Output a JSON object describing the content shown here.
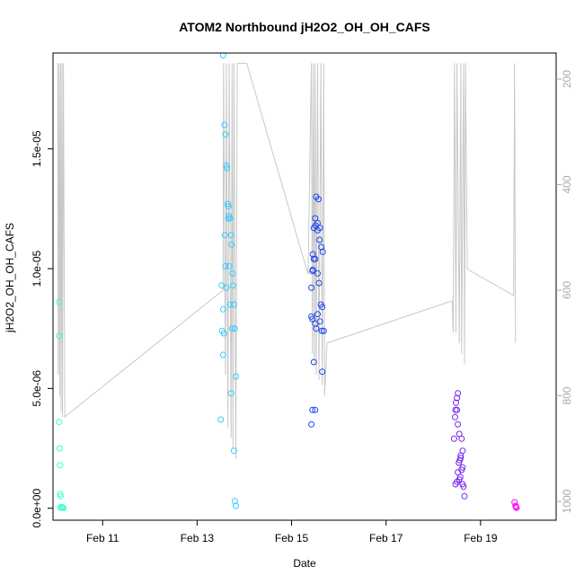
{
  "chart_data": {
    "type": "scatter",
    "title": "ATOM2 Northbound jH2O2_OH_OH_CAFS",
    "xlabel": "Date",
    "ylabel": "jH2O2_OH_OH_CAFS",
    "x_unit": "days in February",
    "xlim": [
      9.95,
      20.6
    ],
    "ylim": [
      -5e-07,
      1.9e-05
    ],
    "x_ticks": [
      {
        "value": 11,
        "label": "Feb 11"
      },
      {
        "value": 13,
        "label": "Feb 13"
      },
      {
        "value": 15,
        "label": "Feb 15"
      },
      {
        "value": 17,
        "label": "Feb 17"
      },
      {
        "value": 19,
        "label": "Feb 19"
      }
    ],
    "y_ticks": [
      {
        "value": 0,
        "label": "0.0e+00"
      },
      {
        "value": 5e-06,
        "label": "5.0e-06"
      },
      {
        "value": 1e-05,
        "label": "1.0e-05"
      },
      {
        "value": 1.5e-05,
        "label": "1.5e-05"
      }
    ],
    "y2_ticks": [
      {
        "value": 200,
        "label": "200"
      },
      {
        "value": 400,
        "label": "400"
      },
      {
        "value": 600,
        "label": "600"
      },
      {
        "value": 800,
        "label": "800"
      },
      {
        "value": 1000,
        "label": "1000"
      }
    ],
    "y2lim": [
      1000,
      170
    ],
    "y2_reversed": true,
    "colors": {
      "pressure_line": "#c8c8c8",
      "axis": "#000000",
      "right_axis": "#aaaaaa"
    },
    "series": [
      {
        "color": "#33ffcc",
        "x": [
          10.08,
          10.08,
          10.08,
          10.09,
          10.1,
          10.1,
          10.11,
          10.13,
          10.15,
          10.17,
          10.1
        ],
        "y": [
          8.6e-06,
          7.2e-06,
          3.6e-06,
          2.5e-06,
          1.8e-06,
          6e-07,
          5e-07,
          5e-08,
          2e-08,
          1e-08,
          3e-08
        ]
      },
      {
        "color": "#33ccff",
        "x": [
          13.55,
          13.58,
          13.6,
          13.62,
          13.63,
          13.65,
          13.66,
          13.67,
          13.7,
          13.72,
          13.73,
          13.75,
          13.76,
          13.78,
          13.8,
          13.82,
          13.5,
          13.52,
          13.53,
          13.55,
          13.6,
          13.62,
          13.66,
          13.68,
          13.7,
          13.72,
          13.74,
          13.78,
          13.55,
          13.57,
          13.59,
          13.82,
          13.8
        ],
        "y": [
          1.89e-05,
          1.6e-05,
          1.56e-05,
          1.43e-05,
          1.42e-05,
          1.27e-05,
          1.26e-05,
          1.22e-05,
          1.21e-05,
          1.14e-05,
          1.1e-05,
          9.8e-06,
          9.3e-06,
          8.5e-06,
          7.5e-06,
          5.5e-06,
          3.7e-06,
          9.3e-06,
          7.4e-06,
          6.4e-06,
          1.01e-05,
          9.2e-06,
          1.21e-05,
          1.01e-05,
          8.5e-06,
          4.8e-06,
          7.5e-06,
          2.4e-06,
          8.3e-06,
          7.3e-06,
          1.14e-05,
          1e-07,
          3e-07
        ]
      },
      {
        "color": "#1a44ee",
        "x": [
          15.52,
          15.57,
          15.5,
          15.55,
          15.6,
          15.47,
          15.51,
          15.55,
          15.59,
          15.63,
          15.66,
          15.45,
          15.47,
          15.5,
          15.44,
          15.55,
          15.58,
          15.62,
          15.65,
          15.42,
          15.45,
          15.5,
          15.55,
          15.6,
          15.64,
          15.68,
          15.42,
          15.44,
          15.47,
          15.52,
          15.65,
          15.5,
          15.44,
          15.42
        ],
        "y": [
          1.3e-05,
          1.29e-05,
          1.21e-05,
          1.19e-05,
          1.17e-05,
          1.17e-05,
          1.18e-05,
          1.16e-05,
          1.12e-05,
          1.09e-05,
          1.07e-05,
          1.06e-05,
          1.04e-05,
          1.04e-05,
          9.9e-06,
          9.8e-06,
          9.4e-06,
          8.5e-06,
          8.4e-06,
          9.2e-06,
          9.95e-06,
          7.7e-06,
          8.1e-06,
          7.8e-06,
          7.4e-06,
          7.4e-06,
          8e-06,
          7.9e-06,
          6.1e-06,
          7.5e-06,
          5.7e-06,
          4.1e-06,
          4.1e-06,
          3.5e-06
        ]
      },
      {
        "color": "#7722ee",
        "x": [
          18.52,
          18.5,
          18.48,
          18.47,
          18.46,
          18.5,
          18.52,
          18.44,
          18.55,
          18.6,
          18.62,
          18.58,
          18.56,
          18.54,
          18.6,
          18.52,
          18.57,
          18.55,
          18.62,
          18.5,
          18.64,
          18.47,
          18.66,
          18.62,
          18.58
        ],
        "y": [
          4.8e-06,
          4.6e-06,
          4.4e-06,
          4.1e-06,
          3.8e-06,
          4.1e-06,
          3.5e-06,
          2.9e-06,
          3.1e-06,
          2.9e-06,
          2.4e-06,
          2.2e-06,
          2e-06,
          1.9e-06,
          1.6e-06,
          1.5e-06,
          1.3e-06,
          1.2e-06,
          1e-06,
          1.1e-06,
          9e-07,
          1e-06,
          5e-07,
          1.7e-06,
          2.1e-06
        ]
      },
      {
        "color": "#ff00ff",
        "x": [
          19.72,
          19.74,
          19.75,
          19.76
        ],
        "y": [
          2.5e-07,
          1e-07,
          5e-08,
          2e-08
        ]
      }
    ],
    "pressure_trace": {
      "x": [
        10.05,
        10.06,
        10.08,
        10.09,
        10.11,
        10.12,
        10.14,
        10.15,
        10.17,
        10.2,
        13.55,
        13.56,
        13.6,
        13.62,
        13.65,
        13.68,
        13.72,
        13.74,
        13.76,
        13.78,
        13.82,
        13.85,
        14.05,
        15.35,
        15.42,
        15.44,
        15.46,
        15.48,
        15.5,
        15.52,
        15.55,
        15.58,
        15.62,
        15.65,
        15.68,
        15.7,
        15.75,
        18.4,
        18.42,
        18.45,
        18.48,
        18.5,
        18.55,
        18.58,
        18.6,
        18.64,
        18.66,
        18.68,
        18.72,
        19.7,
        19.72,
        19.74
      ],
      "p": [
        170,
        760,
        170,
        800,
        170,
        830,
        170,
        840,
        170,
        840,
        600,
        170,
        760,
        170,
        860,
        170,
        880,
        170,
        900,
        170,
        920,
        170,
        170,
        570,
        170,
        720,
        170,
        740,
        170,
        760,
        170,
        770,
        170,
        780,
        170,
        800,
        700,
        620,
        680,
        170,
        680,
        170,
        700,
        170,
        720,
        170,
        740,
        170,
        560,
        610,
        170,
        700
      ]
    }
  }
}
